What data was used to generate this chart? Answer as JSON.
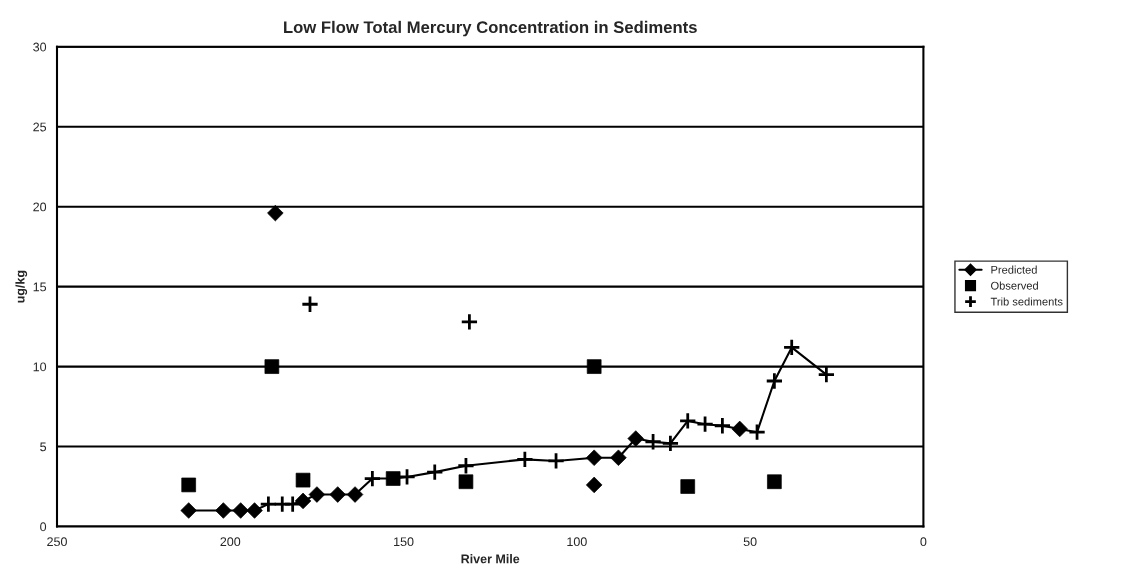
{
  "chart_data": {
    "type": "scatter",
    "title": "Low Flow Total Mercury Concentration in Sediments",
    "xlabel": "River Mile",
    "ylabel": "ug/kg",
    "xlim": [
      250,
      0
    ],
    "xticks": [
      250,
      200,
      150,
      100,
      50,
      0
    ],
    "ylim": [
      0,
      30
    ],
    "yticks": [
      0,
      5,
      10,
      15,
      20,
      25,
      30
    ],
    "grid": "y",
    "legend": "right",
    "series": [
      {
        "type": "line",
        "color": "#000000",
        "marker": "none",
        "line_style": "solid",
        "x": [
          212,
          202,
          197,
          193,
          189,
          185,
          182,
          179,
          175,
          169,
          164,
          159,
          153,
          149,
          141,
          132,
          115,
          106,
          95,
          88,
          83,
          78,
          73,
          68,
          63,
          58,
          53,
          48,
          43,
          38,
          28
        ],
        "values": [
          1.0,
          1.0,
          1.0,
          1.0,
          1.4,
          1.4,
          1.4,
          1.6,
          2.0,
          2.0,
          2.0,
          3.0,
          3.0,
          3.1,
          3.4,
          3.8,
          4.2,
          4.1,
          4.3,
          4.3,
          5.5,
          5.3,
          5.2,
          6.6,
          6.4,
          6.3,
          6.1,
          5.9,
          9.1,
          11.2,
          9.5
        ]
      },
      {
        "name": "Predicted",
        "color": "#000000",
        "marker": "diamond",
        "line_style": "solid",
        "x": [
          212,
          202,
          197,
          193,
          179,
          175,
          169,
          164,
          187,
          95,
          95,
          88,
          83,
          53
        ],
        "values": [
          1.0,
          1.0,
          1.0,
          1.0,
          1.6,
          2.0,
          2.0,
          2.0,
          19.6,
          4.3,
          2.6,
          4.3,
          5.5,
          6.1
        ]
      },
      {
        "name": "Observed",
        "color": "#000000",
        "marker": "square",
        "x": [
          212,
          188,
          179,
          153,
          132,
          95,
          68,
          43
        ],
        "values": [
          2.6,
          10.0,
          2.9,
          3.0,
          2.8,
          10.0,
          2.5,
          2.8
        ]
      },
      {
        "name": "Trib sediments",
        "color": "#000000",
        "marker": "cross",
        "x": [
          189,
          185,
          182,
          159,
          149,
          141,
          132,
          115,
          106,
          78,
          73,
          68,
          63,
          58,
          48,
          43,
          38,
          28,
          177,
          131
        ],
        "values": [
          1.4,
          1.4,
          1.4,
          3.0,
          3.1,
          3.4,
          3.8,
          4.2,
          4.1,
          5.3,
          5.2,
          6.6,
          6.4,
          6.3,
          5.9,
          9.1,
          11.2,
          9.5,
          13.9,
          12.8
        ]
      }
    ]
  }
}
